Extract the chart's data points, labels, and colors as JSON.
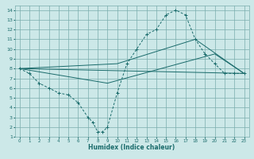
{
  "xlabel": "Humidex (Indice chaleur)",
  "bg_color": "#cce8e8",
  "grid_color": "#7aadad",
  "line_color": "#1a6b6b",
  "xlim": [
    -0.5,
    23.5
  ],
  "ylim": [
    1,
    14.5
  ],
  "xticks": [
    0,
    1,
    2,
    3,
    4,
    5,
    6,
    7,
    8,
    9,
    10,
    11,
    12,
    13,
    14,
    15,
    16,
    17,
    18,
    19,
    20,
    21,
    22,
    23
  ],
  "yticks": [
    1,
    2,
    3,
    4,
    5,
    6,
    7,
    8,
    9,
    10,
    11,
    12,
    13,
    14
  ],
  "series": [
    {
      "x": [
        0,
        1,
        2,
        3,
        4,
        5,
        6,
        7,
        7.5,
        8,
        8.5,
        9,
        10,
        11,
        12,
        13,
        14,
        15,
        16,
        17,
        18,
        19,
        20,
        21,
        22,
        23
      ],
      "y": [
        8,
        7.5,
        6.5,
        6,
        5.5,
        5.3,
        4.5,
        3,
        2.5,
        1.5,
        1.5,
        2,
        5.5,
        8.5,
        10,
        11.5,
        12,
        13.5,
        14,
        13.5,
        11,
        9.5,
        8.5,
        7.5,
        7.5,
        7.5
      ],
      "marker": "+"
    },
    {
      "x": [
        0,
        23
      ],
      "y": [
        8,
        7.5
      ],
      "marker": null
    },
    {
      "x": [
        0,
        9,
        20,
        23
      ],
      "y": [
        8,
        6.5,
        9.5,
        7.5
      ],
      "marker": null
    },
    {
      "x": [
        0,
        10,
        18,
        23
      ],
      "y": [
        8,
        8.5,
        11,
        7.5
      ],
      "marker": null
    }
  ]
}
